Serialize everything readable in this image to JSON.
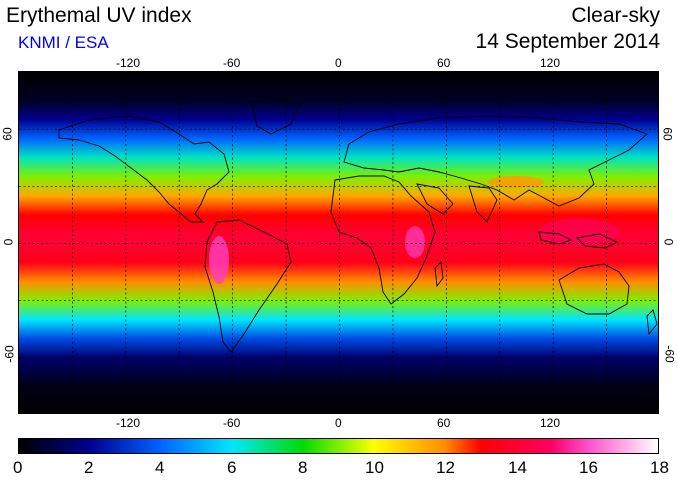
{
  "header": {
    "title": "Erythemal UV index",
    "subtitle": "KNMI / ESA",
    "mode": "Clear-sky",
    "date": "14 September 2014"
  },
  "map": {
    "lon_ticks": [
      "-120",
      "-60",
      "0",
      "60",
      "120"
    ],
    "lat_ticks_left": [
      "60",
      "0",
      "-60"
    ],
    "lat_ticks_right": [
      "60",
      "0",
      "-60"
    ],
    "lon_range": [
      -180,
      180
    ],
    "lat_range": [
      -90,
      90
    ],
    "gridlines": "dashed every 30 degrees",
    "zonal_uv_profile": [
      {
        "lat": 90,
        "uv": 0.0
      },
      {
        "lat": 75,
        "uv": 0.5
      },
      {
        "lat": 65,
        "uv": 2.0
      },
      {
        "lat": 55,
        "uv": 4.0
      },
      {
        "lat": 45,
        "uv": 6.5
      },
      {
        "lat": 35,
        "uv": 9.0
      },
      {
        "lat": 25,
        "uv": 11.5
      },
      {
        "lat": 15,
        "uv": 13.0
      },
      {
        "lat": 5,
        "uv": 14.0
      },
      {
        "lat": 0,
        "uv": 14.0
      },
      {
        "lat": -10,
        "uv": 13.5
      },
      {
        "lat": -20,
        "uv": 12.0
      },
      {
        "lat": -30,
        "uv": 9.0
      },
      {
        "lat": -40,
        "uv": 6.0
      },
      {
        "lat": -50,
        "uv": 3.5
      },
      {
        "lat": -60,
        "uv": 1.5
      },
      {
        "lat": -75,
        "uv": 0.3
      },
      {
        "lat": -90,
        "uv": 0.0
      }
    ],
    "colors": {
      "uv0": "#000000",
      "uv2": "#000090",
      "uv4": "#0064ff",
      "uv6": "#00e6ff",
      "uv8": "#00dc00",
      "uv10": "#ffff00",
      "uv12": "#ff8c00",
      "uv13": "#ff0000",
      "uv15": "#ff0064",
      "uv16": "#ff4ccc",
      "uv18": "#ffffff"
    }
  },
  "colorbar": {
    "labels": [
      "0",
      "2",
      "4",
      "6",
      "8",
      "10",
      "12",
      "14",
      "16",
      "18"
    ],
    "min": 0,
    "max": 18
  }
}
